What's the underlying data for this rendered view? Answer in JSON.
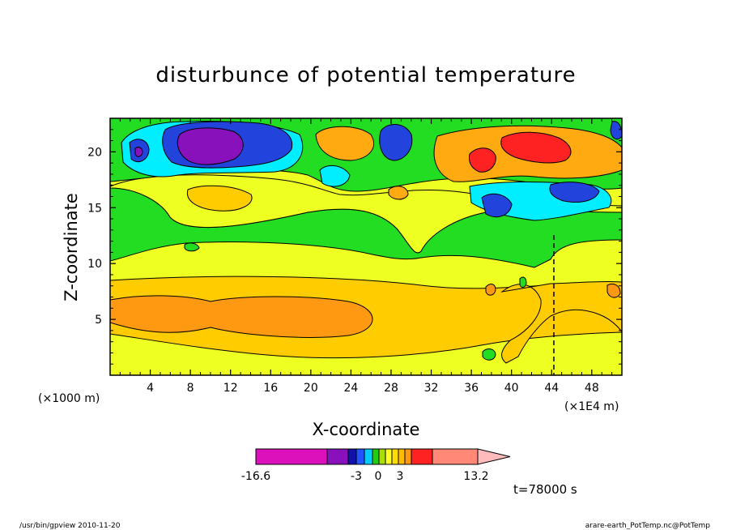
{
  "chart_data": {
    "type": "heatmap",
    "title": "disturbunce of potential temperature",
    "xlabel": "X-coordinate",
    "ylabel": "Z-coordinate",
    "x_unit_left": "(×1000 m)",
    "x_unit_right": "(×1E4 m)",
    "x_ticks": [
      "4",
      "8",
      "12",
      "16",
      "20",
      "24",
      "28",
      "32",
      "36",
      "40",
      "44",
      "48"
    ],
    "y_ticks": [
      "5",
      "10",
      "15",
      "20"
    ],
    "xlim": [
      0,
      51
    ],
    "ylim": [
      0,
      23
    ],
    "colorbar": {
      "labels": [
        "-16.6",
        "-3",
        "0",
        "3",
        "13.2"
      ],
      "colors": [
        "#dd11bb",
        "#8811bb",
        "#1111aa",
        "#2255ff",
        "#00ccff",
        "#22cc11",
        "#aadd00",
        "#ffff22",
        "#ffdd00",
        "#ffbb00",
        "#ff9911",
        "#ff2222",
        "#ff8877",
        "#ffbbbb"
      ]
    },
    "time_label": "t=78000 s",
    "regions_description_colors": {
      "strong_negative": "#8811bb",
      "negative": "#2244dd",
      "weak_negative": "#00eeff",
      "slightly_negative": "#22dd22",
      "near_zero": "#eeff22",
      "slightly_positive": "#ffcc00",
      "positive": "#ffaa11",
      "strong_positive": "#ff2222"
    }
  },
  "footer": {
    "left": "/usr/bin/gpview   2010-11-20",
    "right": "arare-earth_PotTemp.nc@PotTemp"
  }
}
